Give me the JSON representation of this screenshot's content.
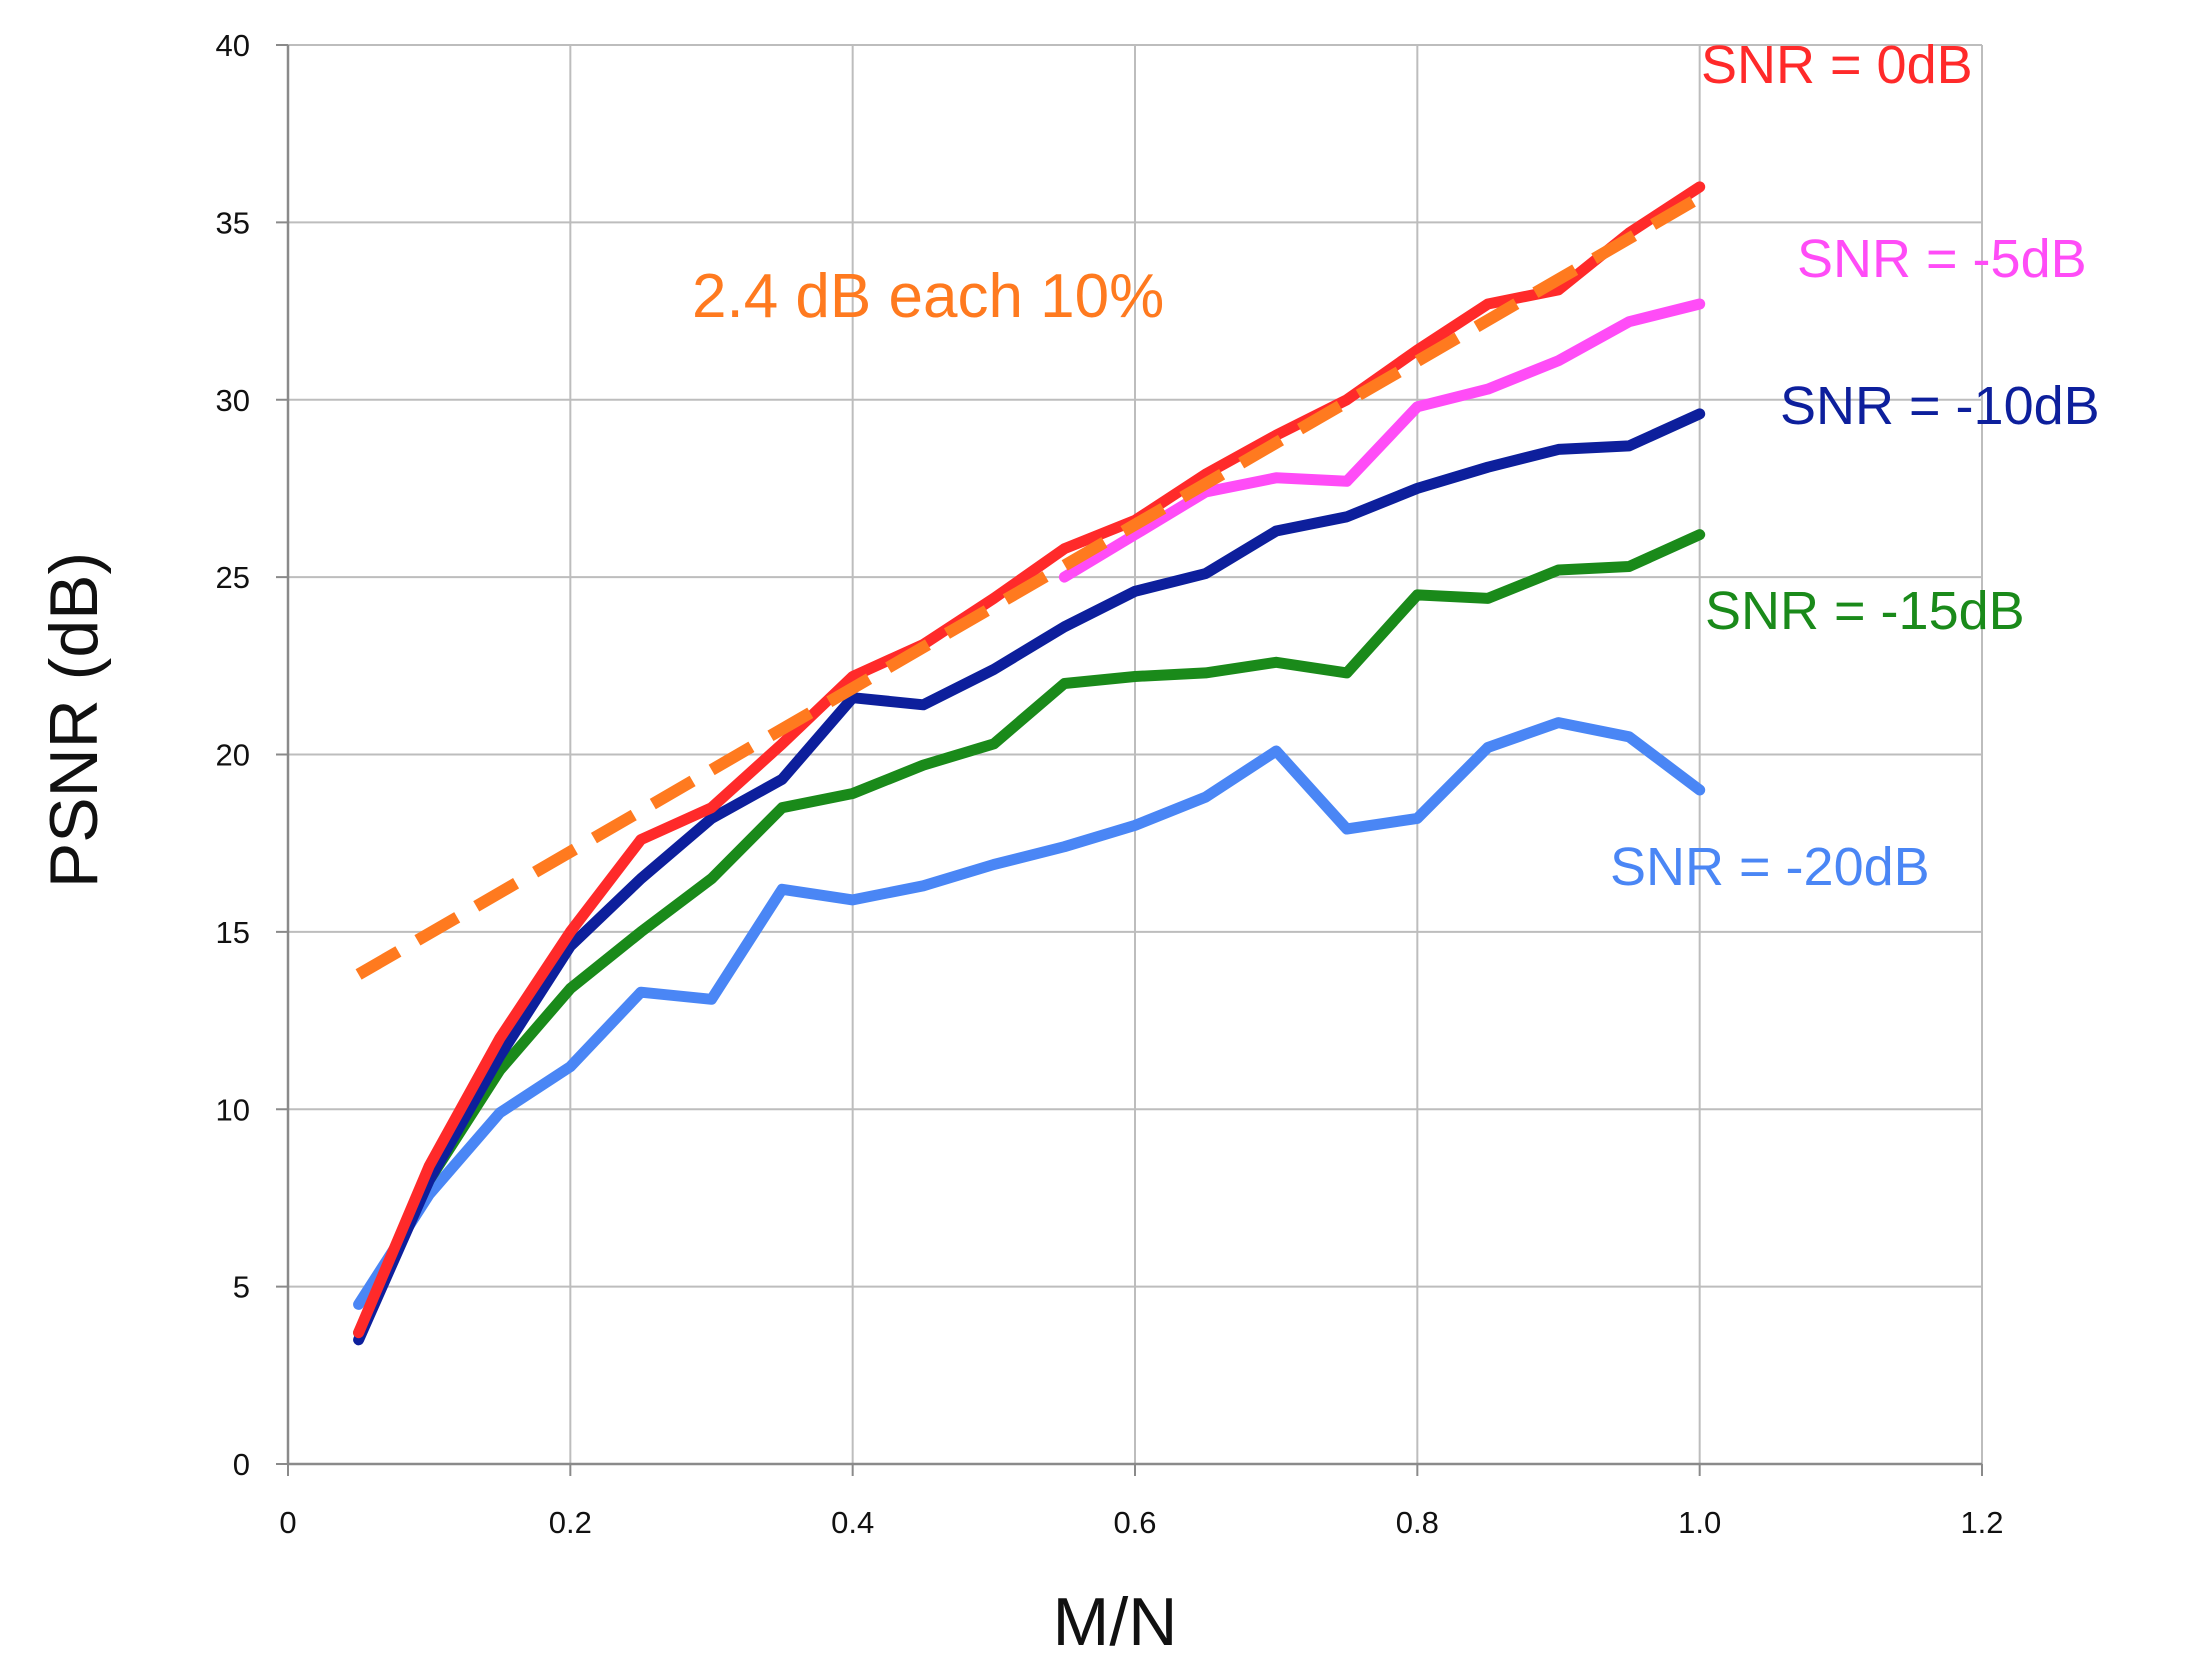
{
  "chart_data": {
    "type": "line",
    "title": "",
    "xlabel": "M/N",
    "ylabel": "PSNR (dB)",
    "xlim": [
      0,
      1.2
    ],
    "ylim": [
      0,
      40
    ],
    "grid": true,
    "x_ticks": [
      {
        "value": 0,
        "label": "0"
      },
      {
        "value": 0.2,
        "label": "0.2"
      },
      {
        "value": 0.4,
        "label": "0.4"
      },
      {
        "value": 0.6,
        "label": "0.6"
      },
      {
        "value": 0.8,
        "label": "0.8"
      },
      {
        "value": 1.0,
        "label": "1.0"
      },
      {
        "value": 1.2,
        "label": "1.2"
      }
    ],
    "y_ticks": [
      {
        "value": 0,
        "label": "0"
      },
      {
        "value": 5,
        "label": "5"
      },
      {
        "value": 10,
        "label": "10"
      },
      {
        "value": 15,
        "label": "15"
      },
      {
        "value": 20,
        "label": "20"
      },
      {
        "value": 25,
        "label": "25"
      },
      {
        "value": 30,
        "label": "30"
      },
      {
        "value": 35,
        "label": "35"
      },
      {
        "value": 40,
        "label": "40"
      }
    ],
    "series": [
      {
        "name": "SNR = 0dB",
        "color": "#ff2a2a",
        "x": [
          0.05,
          0.1,
          0.15,
          0.2,
          0.25,
          0.3,
          0.35,
          0.4,
          0.45,
          0.5,
          0.55,
          0.6,
          0.65,
          0.7,
          0.75,
          0.8,
          0.85,
          0.9,
          0.95,
          1.0
        ],
        "y": [
          3.7,
          8.4,
          12.0,
          15.0,
          17.6,
          18.5,
          20.3,
          22.2,
          23.1,
          24.4,
          25.8,
          26.6,
          27.9,
          29.0,
          30.0,
          31.4,
          32.7,
          33.1,
          34.7,
          36.0
        ]
      },
      {
        "name": "SNR = -5dB",
        "color": "#ff4cf7",
        "x": [
          0.55,
          0.6,
          0.65,
          0.7,
          0.75,
          0.8,
          0.85,
          0.9,
          0.95,
          1.0
        ],
        "y": [
          25.0,
          26.2,
          27.4,
          27.8,
          27.7,
          29.8,
          30.3,
          31.1,
          32.2,
          32.7
        ]
      },
      {
        "name": "SNR = -10dB",
        "color": "#0d1f9c",
        "x": [
          0.05,
          0.1,
          0.15,
          0.2,
          0.25,
          0.3,
          0.35,
          0.4,
          0.45,
          0.5,
          0.55,
          0.6,
          0.65,
          0.7,
          0.75,
          0.8,
          0.85,
          0.9,
          0.95,
          1.0
        ],
        "y": [
          3.5,
          8.0,
          11.5,
          14.6,
          16.5,
          18.2,
          19.3,
          21.6,
          21.4,
          22.4,
          23.6,
          24.6,
          25.1,
          26.3,
          26.7,
          27.5,
          28.1,
          28.6,
          28.7,
          29.6
        ]
      },
      {
        "name": "SNR = -15dB",
        "color": "#1a8a1a",
        "x": [
          0.05,
          0.1,
          0.15,
          0.2,
          0.25,
          0.3,
          0.35,
          0.4,
          0.45,
          0.5,
          0.55,
          0.6,
          0.65,
          0.7,
          0.75,
          0.8,
          0.85,
          0.9,
          0.95,
          1.0
        ],
        "y": [
          3.7,
          8.0,
          11.1,
          13.4,
          15.0,
          16.5,
          18.5,
          18.9,
          19.7,
          20.3,
          22.0,
          22.2,
          22.3,
          22.6,
          22.3,
          24.5,
          24.4,
          25.2,
          25.3,
          26.2
        ]
      },
      {
        "name": "SNR = -20dB",
        "color": "#4a86f5",
        "x": [
          0.05,
          0.1,
          0.15,
          0.2,
          0.25,
          0.3,
          0.35,
          0.4,
          0.45,
          0.5,
          0.55,
          0.6,
          0.65,
          0.7,
          0.75,
          0.8,
          0.85,
          0.9,
          0.95,
          1.0
        ],
        "y": [
          4.5,
          7.6,
          9.9,
          11.2,
          13.3,
          13.1,
          16.2,
          15.9,
          16.3,
          16.9,
          17.4,
          18.0,
          18.8,
          20.1,
          17.9,
          18.2,
          20.2,
          20.9,
          20.5,
          19.0
        ]
      }
    ],
    "trend": {
      "label": "2.4 dB each 10%",
      "color": "#ff7a1f",
      "x": [
        0.05,
        1.0
      ],
      "y": [
        13.8,
        35.7
      ]
    }
  }
}
